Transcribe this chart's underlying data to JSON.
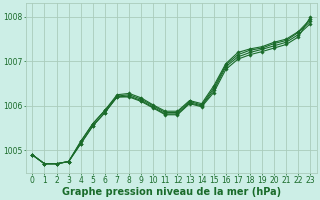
{
  "xlabel": "Graphe pression niveau de la mer (hPa)",
  "x": [
    0,
    1,
    2,
    3,
    4,
    5,
    6,
    7,
    8,
    9,
    10,
    11,
    12,
    13,
    14,
    15,
    16,
    17,
    18,
    19,
    20,
    21,
    22,
    23
  ],
  "series": [
    [
      1004.9,
      1004.7,
      1004.7,
      1004.75,
      1005.15,
      1005.55,
      1005.85,
      1006.2,
      1006.2,
      1006.1,
      1005.95,
      1005.8,
      1005.8,
      1006.05,
      1005.98,
      1006.3,
      1006.82,
      1007.05,
      1007.15,
      1007.22,
      1007.3,
      1007.38,
      1007.55,
      1008.0
    ],
    [
      1004.9,
      1004.7,
      1004.7,
      1004.75,
      1005.15,
      1005.55,
      1005.85,
      1006.2,
      1006.22,
      1006.12,
      1005.97,
      1005.82,
      1005.82,
      1006.07,
      1006.0,
      1006.35,
      1006.88,
      1007.1,
      1007.2,
      1007.27,
      1007.35,
      1007.43,
      1007.6,
      1007.85
    ],
    [
      1004.9,
      1004.7,
      1004.7,
      1004.75,
      1005.2,
      1005.6,
      1005.9,
      1006.22,
      1006.25,
      1006.15,
      1006.0,
      1005.85,
      1005.85,
      1006.1,
      1006.02,
      1006.4,
      1006.92,
      1007.15,
      1007.25,
      1007.3,
      1007.4,
      1007.47,
      1007.65,
      1007.9
    ],
    [
      1004.9,
      1004.7,
      1004.7,
      1004.75,
      1005.2,
      1005.6,
      1005.9,
      1006.25,
      1006.28,
      1006.18,
      1006.02,
      1005.88,
      1005.88,
      1006.12,
      1006.05,
      1006.45,
      1006.95,
      1007.2,
      1007.28,
      1007.33,
      1007.43,
      1007.5,
      1007.67,
      1007.95
    ]
  ],
  "bg_color": "#cceee6",
  "grid_color": "#aaccbb",
  "line_color": "#1a6b2a",
  "marker": "D",
  "marker_size": 1.8,
  "linewidth": 0.8,
  "ylim": [
    1004.5,
    1008.3
  ],
  "yticks": [
    1005,
    1006,
    1007,
    1008
  ],
  "xticks": [
    0,
    1,
    2,
    3,
    4,
    5,
    6,
    7,
    8,
    9,
    10,
    11,
    12,
    13,
    14,
    15,
    16,
    17,
    18,
    19,
    20,
    21,
    22,
    23
  ],
  "tick_fontsize": 5.5,
  "label_fontsize": 7.0,
  "figsize": [
    3.2,
    2.0
  ],
  "dpi": 100
}
